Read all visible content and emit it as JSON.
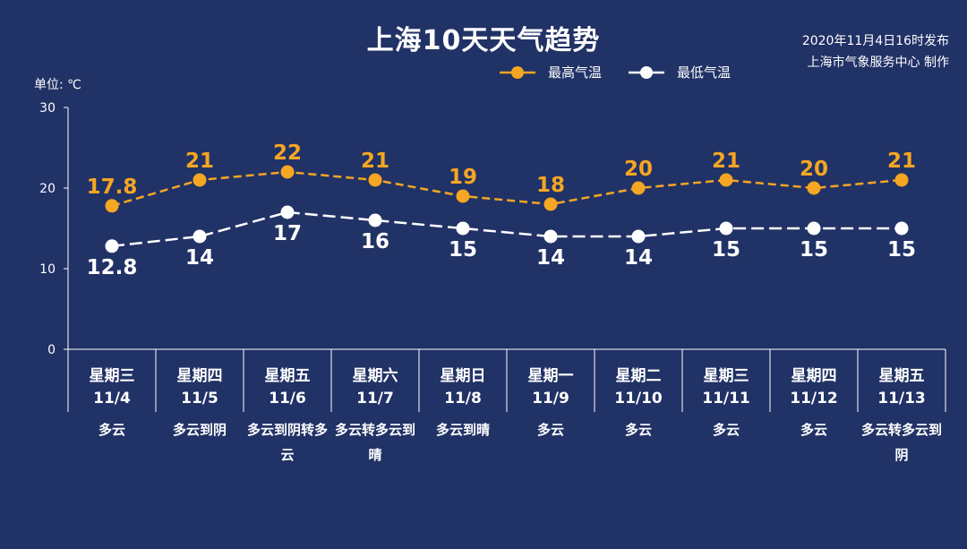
{
  "header": {
    "title": "上海10天天气趋势",
    "issued": "2020年11月4日16时发布",
    "producer": "上海市气象服务中心 制作",
    "unit": "单位: ℃"
  },
  "colors": {
    "background": "#213266",
    "high": "#f5a623",
    "low": "#ffffff",
    "axis": "#ffffff"
  },
  "chart_data": {
    "type": "line",
    "x": [
      "11/4",
      "11/5",
      "11/6",
      "11/7",
      "11/8",
      "11/9",
      "11/10",
      "11/11",
      "11/12",
      "11/13"
    ],
    "weekdays": [
      "星期三",
      "星期四",
      "星期五",
      "星期六",
      "星期日",
      "星期一",
      "星期二",
      "星期三",
      "星期四",
      "星期五"
    ],
    "weather": [
      "多云",
      "多云到阴",
      "多云到阴转多云",
      "多云转多云到晴",
      "多云到晴",
      "多云",
      "多云",
      "多云",
      "多云",
      "多云转多云到阴"
    ],
    "ylim": [
      0,
      30
    ],
    "yticks": [
      "0",
      "10",
      "20",
      "30"
    ],
    "grid": false,
    "legend_position": "top-right",
    "series": [
      {
        "name": "最高气温",
        "values": [
          17.8,
          21,
          22,
          21,
          19,
          18,
          20,
          21,
          20,
          21
        ],
        "labels": [
          "17.8",
          "21",
          "22",
          "21",
          "19",
          "18",
          "20",
          "21",
          "20",
          "21"
        ]
      },
      {
        "name": "最低气温",
        "values": [
          12.8,
          14,
          17,
          16,
          15,
          14,
          14,
          15,
          15,
          15
        ],
        "labels": [
          "12.8",
          "14",
          "17",
          "16",
          "15",
          "14",
          "14",
          "15",
          "15",
          "15"
        ]
      }
    ]
  }
}
